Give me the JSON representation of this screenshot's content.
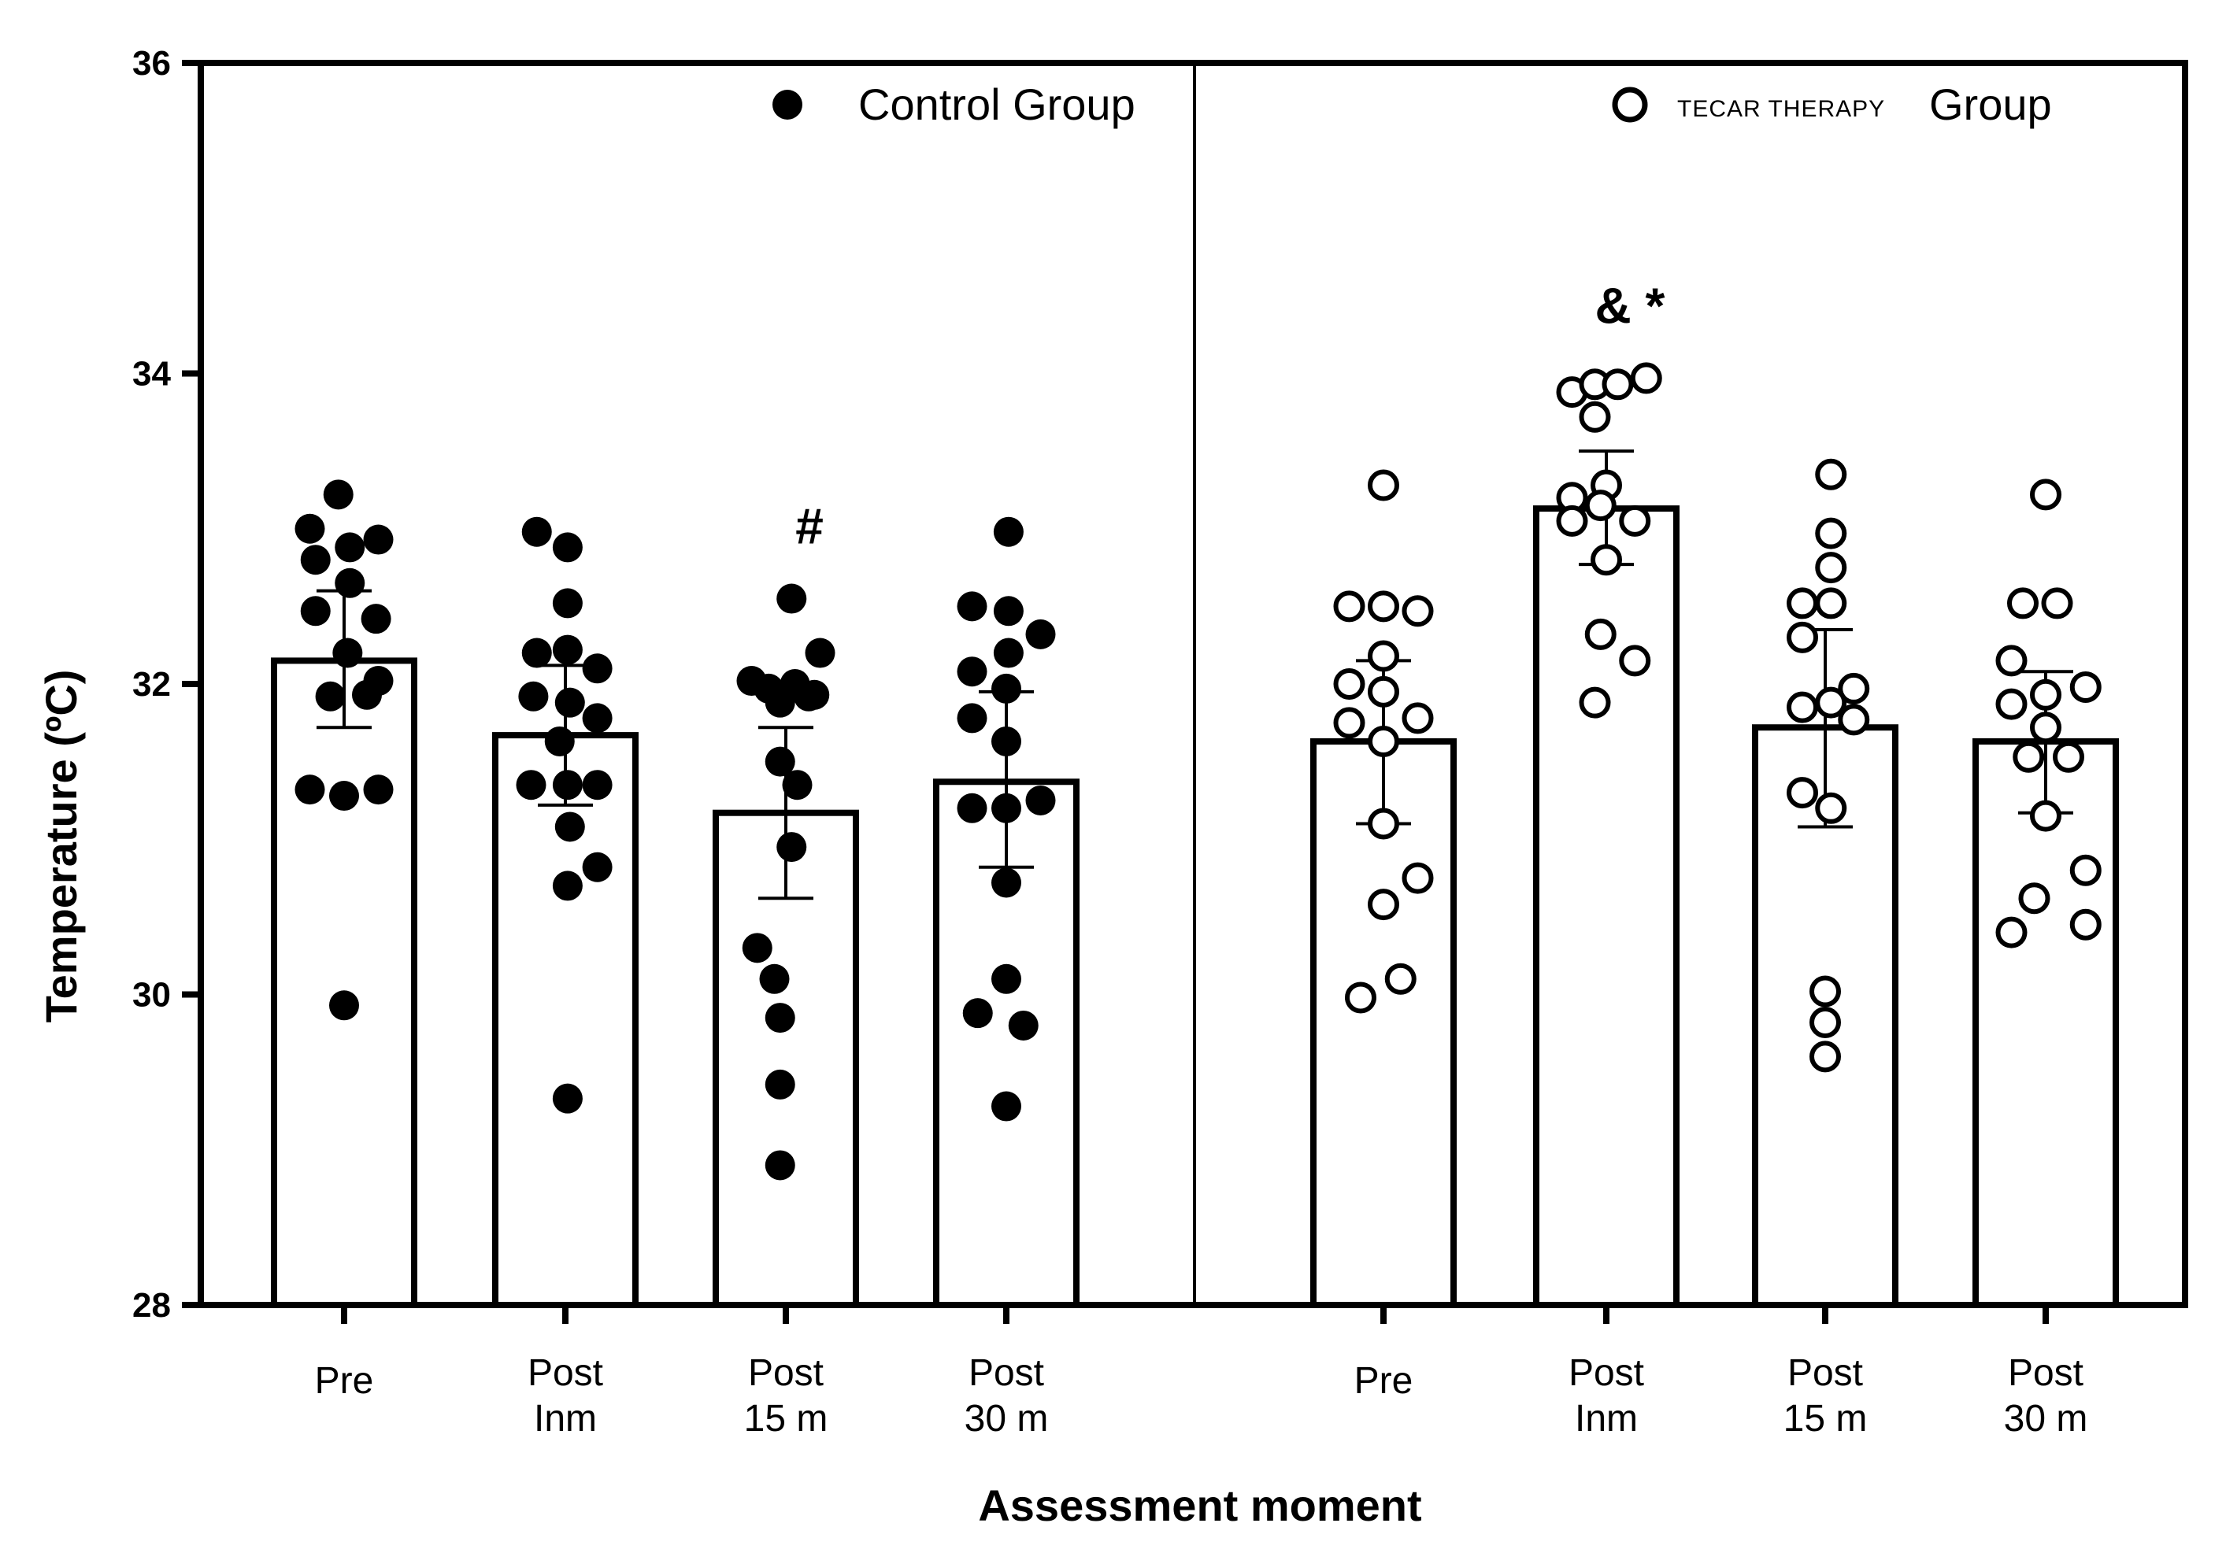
{
  "chart_data": {
    "type": "bar",
    "title": "",
    "xlabel": "Assessment moment",
    "ylabel": "Temperature (ºC)",
    "ylim": [
      28,
      36
    ],
    "yticks": [
      28,
      30,
      32,
      34,
      36
    ],
    "groups": [
      {
        "name": "Control Group",
        "legend_label": "Control Group",
        "marker": "filled",
        "categories": [
          {
            "label": [
              "Pre"
            ],
            "mean": 32.15,
            "err_low": 31.72,
            "err_high": 32.6,
            "annotation": "",
            "points": [
              [
                -0.3,
                33.0
              ],
              [
                -0.05,
                33.22
              ],
              [
                0.3,
                32.93
              ],
              [
                -0.25,
                32.8
              ],
              [
                0.05,
                32.88
              ],
              [
                -0.25,
                32.47
              ],
              [
                0.05,
                32.65
              ],
              [
                0.28,
                32.42
              ],
              [
                0.03,
                32.2
              ],
              [
                -0.12,
                31.92
              ],
              [
                0.2,
                31.93
              ],
              [
                0.3,
                32.02
              ],
              [
                -0.3,
                31.32
              ],
              [
                0.0,
                31.28
              ],
              [
                0.3,
                31.32
              ],
              [
                0.0,
                29.93
              ]
            ]
          },
          {
            "label": [
              "Post",
              "Inm"
            ],
            "mean": 31.67,
            "err_low": 31.22,
            "err_high": 32.12,
            "annotation": "",
            "points": [
              [
                -0.25,
                32.98
              ],
              [
                0.02,
                32.88
              ],
              [
                0.02,
                32.52
              ],
              [
                -0.25,
                32.2
              ],
              [
                0.02,
                32.22
              ],
              [
                0.28,
                32.1
              ],
              [
                -0.28,
                31.92
              ],
              [
                0.04,
                31.88
              ],
              [
                0.28,
                31.78
              ],
              [
                -0.05,
                31.63
              ],
              [
                -0.3,
                31.35
              ],
              [
                0.02,
                31.35
              ],
              [
                0.28,
                31.35
              ],
              [
                0.04,
                31.08
              ],
              [
                0.28,
                30.82
              ],
              [
                0.02,
                30.7
              ],
              [
                0.02,
                29.33
              ]
            ]
          },
          {
            "label": [
              "Post",
              "15 m"
            ],
            "mean": 31.17,
            "err_low": 30.62,
            "err_high": 31.72,
            "annotation": "#",
            "points": [
              [
                0.05,
                32.55
              ],
              [
                0.3,
                32.2
              ],
              [
                -0.3,
                32.02
              ],
              [
                0.08,
                32.0
              ],
              [
                -0.15,
                31.97
              ],
              [
                0.25,
                31.93
              ],
              [
                -0.05,
                31.88
              ],
              [
                0.2,
                31.92
              ],
              [
                -0.05,
                31.5
              ],
              [
                0.1,
                31.35
              ],
              [
                0.05,
                30.95
              ],
              [
                -0.25,
                30.3
              ],
              [
                -0.1,
                30.1
              ],
              [
                -0.05,
                29.85
              ],
              [
                -0.05,
                29.42
              ],
              [
                -0.05,
                28.9
              ]
            ]
          },
          {
            "label": [
              "Post",
              "30 m"
            ],
            "mean": 31.37,
            "err_low": 30.82,
            "err_high": 31.95,
            "annotation": "",
            "points": [
              [
                0.02,
                32.98
              ],
              [
                -0.3,
                32.5
              ],
              [
                0.02,
                32.47
              ],
              [
                0.3,
                32.32
              ],
              [
                0.02,
                32.2
              ],
              [
                -0.3,
                32.08
              ],
              [
                0.0,
                31.97
              ],
              [
                -0.3,
                31.78
              ],
              [
                0.0,
                31.63
              ],
              [
                0.3,
                31.25
              ],
              [
                -0.3,
                31.2
              ],
              [
                0.0,
                31.2
              ],
              [
                0.0,
                30.72
              ],
              [
                0.0,
                30.1
              ],
              [
                -0.25,
                29.88
              ],
              [
                0.15,
                29.8
              ],
              [
                0.0,
                29.28
              ]
            ]
          }
        ]
      },
      {
        "name": "TECAR THERAPY Group",
        "legend_small": "TECAR THERAPY",
        "legend_label": "Group",
        "marker": "open",
        "categories": [
          {
            "label": [
              "Pre"
            ],
            "mean": 31.63,
            "err_low": 31.1,
            "err_high": 32.15,
            "annotation": "",
            "points": [
              [
                0.0,
                33.28
              ],
              [
                -0.3,
                32.5
              ],
              [
                0.0,
                32.5
              ],
              [
                0.3,
                32.47
              ],
              [
                0.0,
                32.18
              ],
              [
                -0.3,
                32.0
              ],
              [
                0.0,
                31.95
              ],
              [
                -0.3,
                31.75
              ],
              [
                0.0,
                31.63
              ],
              [
                0.3,
                31.78
              ],
              [
                0.0,
                31.1
              ],
              [
                0.3,
                30.75
              ],
              [
                0.0,
                30.58
              ],
              [
                0.15,
                30.1
              ],
              [
                -0.2,
                29.98
              ]
            ]
          },
          {
            "label": [
              "Post",
              "Inm"
            ],
            "mean": 33.13,
            "err_low": 32.77,
            "err_high": 33.5,
            "annotation": "& *",
            "points": [
              [
                -0.3,
                33.88
              ],
              [
                -0.1,
                33.93
              ],
              [
                0.1,
                33.93
              ],
              [
                0.35,
                33.97
              ],
              [
                -0.1,
                33.72
              ],
              [
                -0.3,
                33.2
              ],
              [
                0.0,
                33.28
              ],
              [
                -0.05,
                33.15
              ],
              [
                0.25,
                33.05
              ],
              [
                -0.3,
                33.05
              ],
              [
                0.0,
                32.8
              ],
              [
                -0.05,
                32.32
              ],
              [
                0.25,
                32.15
              ],
              [
                -0.1,
                31.88
              ]
            ]
          },
          {
            "label": [
              "Post",
              "15 m"
            ],
            "mean": 31.72,
            "err_low": 31.08,
            "err_high": 32.35,
            "annotation": "",
            "points": [
              [
                0.05,
                33.35
              ],
              [
                0.05,
                32.97
              ],
              [
                0.05,
                32.75
              ],
              [
                -0.2,
                32.52
              ],
              [
                0.05,
                32.52
              ],
              [
                -0.2,
                32.3
              ],
              [
                0.25,
                31.97
              ],
              [
                -0.2,
                31.85
              ],
              [
                0.05,
                31.88
              ],
              [
                0.25,
                31.77
              ],
              [
                -0.2,
                31.3
              ],
              [
                0.05,
                31.2
              ],
              [
                0.0,
                30.02
              ],
              [
                0.0,
                29.82
              ],
              [
                0.0,
                29.6
              ]
            ]
          },
          {
            "label": [
              "Post",
              "30 m"
            ],
            "mean": 31.63,
            "err_low": 31.17,
            "err_high": 32.08,
            "annotation": "",
            "points": [
              [
                0.0,
                33.22
              ],
              [
                -0.2,
                32.52
              ],
              [
                0.1,
                32.52
              ],
              [
                -0.3,
                32.15
              ],
              [
                0.35,
                31.98
              ],
              [
                0.0,
                31.93
              ],
              [
                -0.3,
                31.87
              ],
              [
                0.0,
                31.72
              ],
              [
                -0.15,
                31.53
              ],
              [
                0.2,
                31.53
              ],
              [
                0.0,
                31.15
              ],
              [
                0.35,
                30.8
              ],
              [
                -0.1,
                30.62
              ],
              [
                -0.3,
                30.4
              ],
              [
                0.35,
                30.45
              ]
            ]
          }
        ]
      }
    ]
  }
}
